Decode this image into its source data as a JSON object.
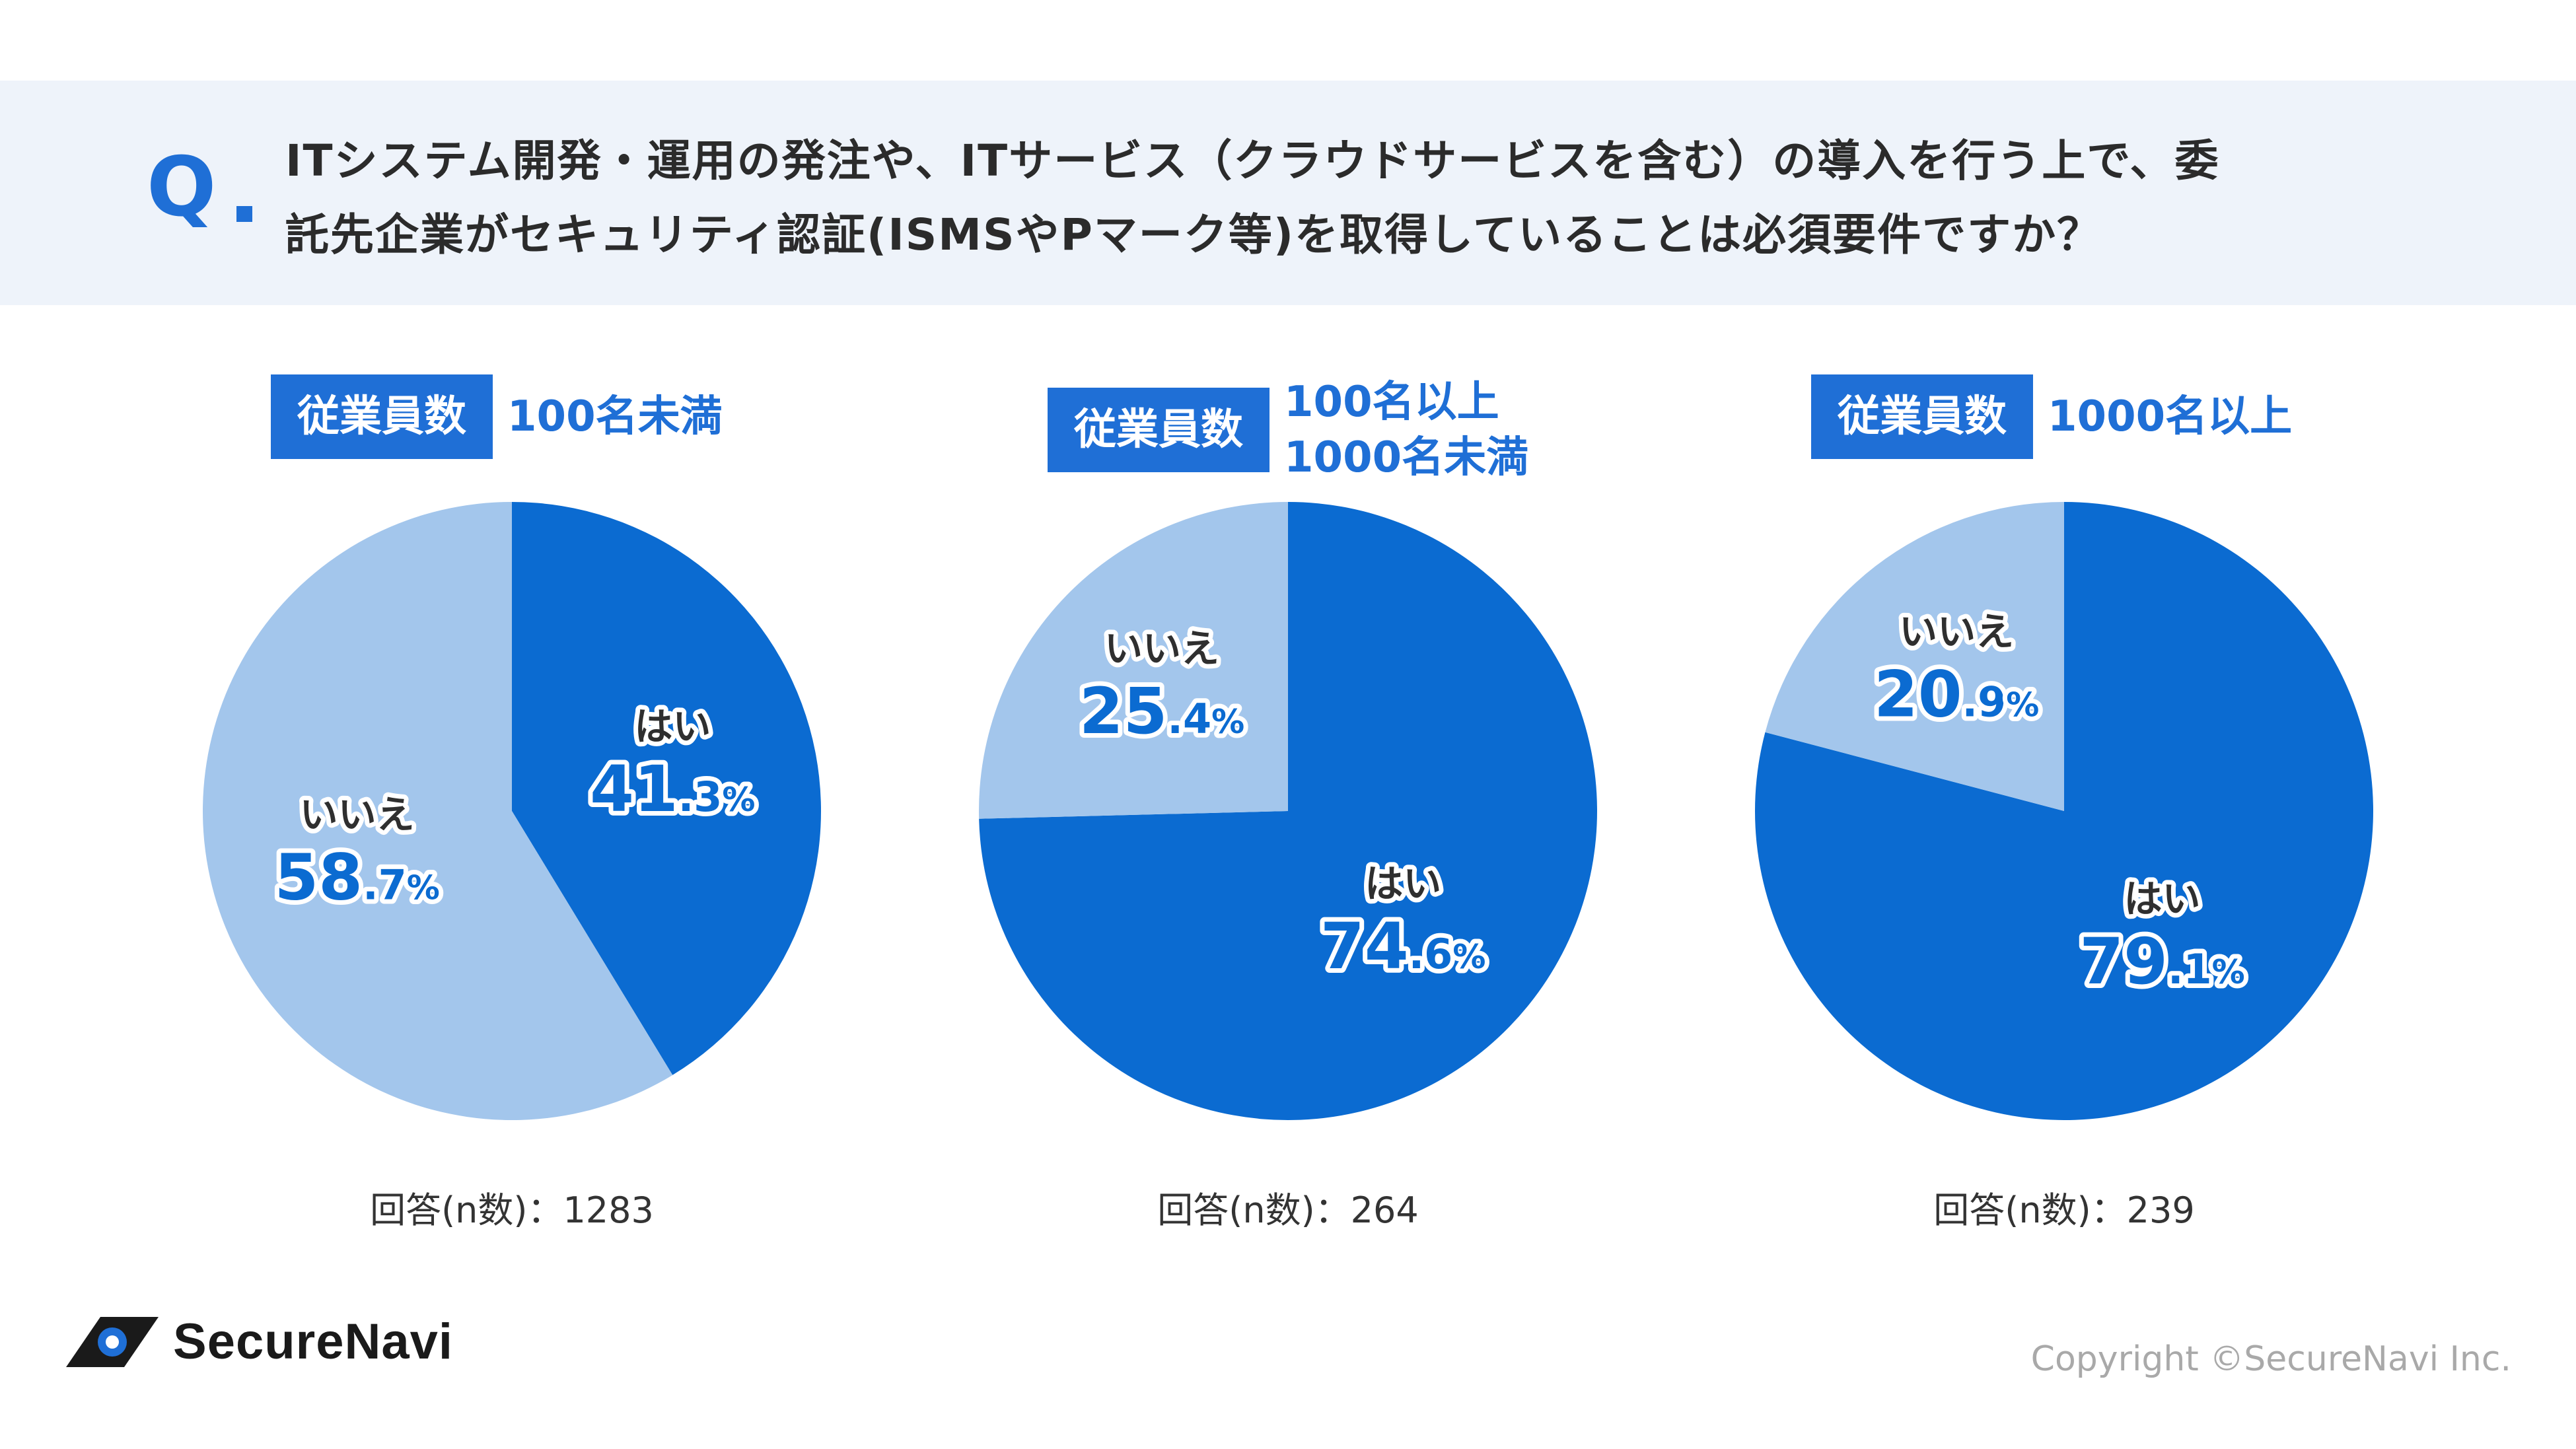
{
  "question": {
    "mark": "Q",
    "line1": "ITシステム開発・運用の発注や、ITサービス（クラウドサービスを含む）の導入を行う上で、委",
    "line2": "託先企業がセキュリティ認証(ISMSやPマーク等)を取得していることは必須要件ですか？"
  },
  "colors": {
    "yes": "#0b6bd1",
    "no": "#a3c6ec",
    "accent": "#1f6fd6"
  },
  "chart_data": [
    {
      "type": "pie",
      "tag": "従業員数",
      "group_lines": [
        "100名未満"
      ],
      "slices": [
        {
          "label": "はい",
          "value": 41.3,
          "int": "41",
          "dec": ".3",
          "unit": "%"
        },
        {
          "label": "いいえ",
          "value": 58.7,
          "int": "58",
          "dec": ".7",
          "unit": "%"
        }
      ],
      "n_text": "回答(n数)：1283"
    },
    {
      "type": "pie",
      "tag": "従業員数",
      "group_lines": [
        "100名以上",
        "1000名未満"
      ],
      "slices": [
        {
          "label": "はい",
          "value": 74.6,
          "int": "74",
          "dec": ".6",
          "unit": "%"
        },
        {
          "label": "いいえ",
          "value": 25.4,
          "int": "25",
          "dec": ".4",
          "unit": "%"
        }
      ],
      "n_text": "回答(n数)：264"
    },
    {
      "type": "pie",
      "tag": "従業員数",
      "group_lines": [
        "1000名以上"
      ],
      "slices": [
        {
          "label": "はい",
          "value": 79.1,
          "int": "79",
          "dec": ".1",
          "unit": "%"
        },
        {
          "label": "いいえ",
          "value": 20.9,
          "int": "20",
          "dec": ".9",
          "unit": "%"
        }
      ],
      "n_text": "回答(n数)：239"
    }
  ],
  "footer": {
    "brand": "SecureNavi",
    "logo_icon": "securenavi-logo-icon",
    "copyright": "Copyright ©SecureNavi Inc."
  }
}
